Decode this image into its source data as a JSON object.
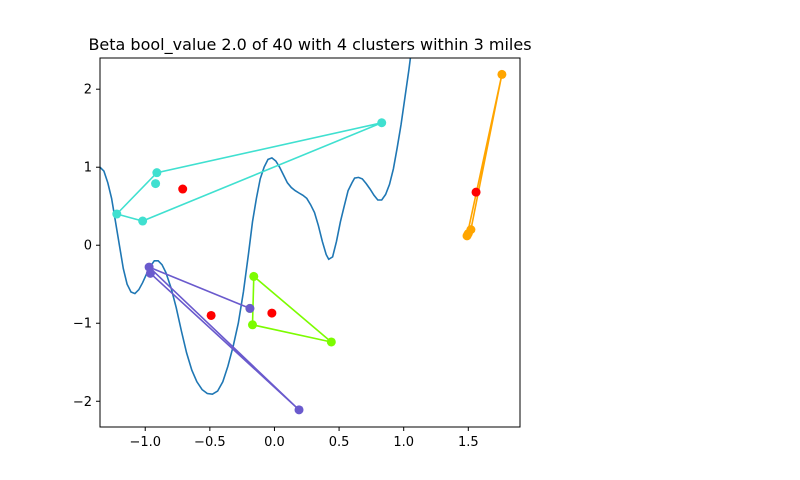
{
  "chart_data": {
    "type": "scatter",
    "title": "Beta bool_value 2.0 of 40 with 4 clusters within 3 miles",
    "xlabel": "",
    "ylabel": "",
    "xlim": [
      -1.35,
      1.9
    ],
    "ylim": [
      -2.33,
      2.4
    ],
    "grid": false,
    "x_ticks": [
      {
        "value": -1.0,
        "label": "−1.0"
      },
      {
        "value": -0.5,
        "label": "−0.5"
      },
      {
        "value": 0.0,
        "label": "0.0"
      },
      {
        "value": 0.5,
        "label": "0.5"
      },
      {
        "value": 1.0,
        "label": "1.0"
      },
      {
        "value": 1.5,
        "label": "1.5"
      }
    ],
    "y_ticks": [
      {
        "value": -2,
        "label": "−2"
      },
      {
        "value": -1,
        "label": "−1"
      },
      {
        "value": 0,
        "label": "0"
      },
      {
        "value": 1,
        "label": "1"
      },
      {
        "value": 2,
        "label": "2"
      }
    ],
    "curve": {
      "color": "#1f77b4",
      "points": [
        [
          -1.35,
          1.0
        ],
        [
          -1.32,
          0.95
        ],
        [
          -1.29,
          0.8
        ],
        [
          -1.26,
          0.6
        ],
        [
          -1.23,
          0.3
        ],
        [
          -1.2,
          0.0
        ],
        [
          -1.17,
          -0.3
        ],
        [
          -1.14,
          -0.5
        ],
        [
          -1.11,
          -0.6
        ],
        [
          -1.08,
          -0.62
        ],
        [
          -1.05,
          -0.57
        ],
        [
          -1.02,
          -0.48
        ],
        [
          -0.99,
          -0.37
        ],
        [
          -0.96,
          -0.27
        ],
        [
          -0.93,
          -0.2
        ],
        [
          -0.9,
          -0.2
        ],
        [
          -0.87,
          -0.25
        ],
        [
          -0.84,
          -0.35
        ],
        [
          -0.8,
          -0.55
        ],
        [
          -0.76,
          -0.8
        ],
        [
          -0.72,
          -1.1
        ],
        [
          -0.68,
          -1.38
        ],
        [
          -0.64,
          -1.6
        ],
        [
          -0.6,
          -1.75
        ],
        [
          -0.56,
          -1.85
        ],
        [
          -0.52,
          -1.9
        ],
        [
          -0.48,
          -1.91
        ],
        [
          -0.44,
          -1.87
        ],
        [
          -0.4,
          -1.75
        ],
        [
          -0.36,
          -1.55
        ],
        [
          -0.32,
          -1.3
        ],
        [
          -0.28,
          -1.0
        ],
        [
          -0.24,
          -0.6
        ],
        [
          -0.2,
          -0.1
        ],
        [
          -0.17,
          0.3
        ],
        [
          -0.14,
          0.6
        ],
        [
          -0.11,
          0.85
        ],
        [
          -0.08,
          1.0
        ],
        [
          -0.05,
          1.1
        ],
        [
          -0.02,
          1.12
        ],
        [
          0.01,
          1.08
        ],
        [
          0.04,
          1.0
        ],
        [
          0.07,
          0.9
        ],
        [
          0.1,
          0.8
        ],
        [
          0.13,
          0.74
        ],
        [
          0.16,
          0.7
        ],
        [
          0.19,
          0.67
        ],
        [
          0.22,
          0.64
        ],
        [
          0.25,
          0.6
        ],
        [
          0.28,
          0.52
        ],
        [
          0.31,
          0.42
        ],
        [
          0.34,
          0.25
        ],
        [
          0.37,
          0.05
        ],
        [
          0.4,
          -0.12
        ],
        [
          0.42,
          -0.18
        ],
        [
          0.45,
          -0.15
        ],
        [
          0.48,
          0.05
        ],
        [
          0.51,
          0.3
        ],
        [
          0.54,
          0.5
        ],
        [
          0.57,
          0.7
        ],
        [
          0.6,
          0.8
        ],
        [
          0.62,
          0.86
        ],
        [
          0.65,
          0.87
        ],
        [
          0.68,
          0.85
        ],
        [
          0.71,
          0.79
        ],
        [
          0.74,
          0.72
        ],
        [
          0.77,
          0.64
        ],
        [
          0.8,
          0.58
        ],
        [
          0.83,
          0.58
        ],
        [
          0.86,
          0.65
        ],
        [
          0.89,
          0.78
        ],
        [
          0.92,
          0.98
        ],
        [
          0.95,
          1.25
        ],
        [
          0.98,
          1.55
        ],
        [
          1.01,
          1.9
        ],
        [
          1.04,
          2.25
        ],
        [
          1.06,
          2.5
        ]
      ]
    },
    "clusters": [
      {
        "color": "#40e0d0",
        "points": [
          [
            -1.22,
            0.4
          ],
          [
            -0.91,
            0.93
          ],
          [
            0.83,
            1.57
          ],
          [
            -1.02,
            0.31
          ],
          [
            -0.92,
            0.79
          ]
        ],
        "path": [
          [
            -1.22,
            0.4
          ],
          [
            -0.91,
            0.93
          ],
          [
            0.83,
            1.57
          ],
          [
            -1.02,
            0.31
          ],
          [
            -1.22,
            0.4
          ]
        ],
        "centroid": [
          -0.71,
          0.72
        ]
      },
      {
        "color": "#ffa500",
        "points": [
          [
            1.76,
            2.19
          ],
          [
            1.52,
            0.2
          ],
          [
            1.49,
            0.12
          ],
          [
            1.5,
            0.15
          ]
        ],
        "path": [
          [
            1.76,
            2.19
          ],
          [
            1.52,
            0.2
          ],
          [
            1.49,
            0.12
          ],
          [
            1.76,
            2.19
          ]
        ],
        "centroid": [
          1.56,
          0.68
        ]
      },
      {
        "color": "#7cfc00",
        "points": [
          [
            -0.16,
            -0.4
          ],
          [
            0.44,
            -1.24
          ],
          [
            -0.17,
            -1.02
          ],
          [
            -0.19,
            -0.81
          ]
        ],
        "path": [
          [
            -0.16,
            -0.4
          ],
          [
            0.44,
            -1.24
          ],
          [
            -0.17,
            -1.02
          ],
          [
            -0.16,
            -0.4
          ]
        ],
        "centroid": [
          -0.02,
          -0.87
        ]
      },
      {
        "color": "#6a5acd",
        "points": [
          [
            -0.97,
            -0.28
          ],
          [
            -0.96,
            -0.36
          ],
          [
            0.19,
            -2.11
          ],
          [
            -0.19,
            -0.81
          ]
        ],
        "path": [
          [
            -0.97,
            -0.28
          ],
          [
            -0.96,
            -0.36
          ],
          [
            0.19,
            -2.11
          ],
          [
            -0.97,
            -0.28
          ]
        ],
        "path2": [
          [
            -0.97,
            -0.28
          ],
          [
            -0.19,
            -0.81
          ]
        ],
        "centroid": [
          -0.49,
          -0.9
        ]
      }
    ],
    "centroid_color": "#ff0000"
  }
}
